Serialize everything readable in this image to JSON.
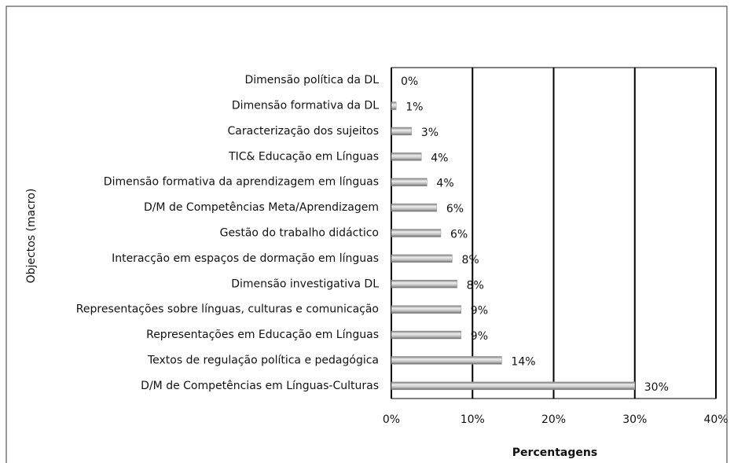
{
  "chart_data": {
    "type": "barh",
    "ylabel": "Objectos (macro)",
    "xlabel": "Percentagens",
    "categories": [
      "Dimensão política da DL",
      "Dimensão formativa da DL",
      "Caracterização dos sujeitos",
      "TIC& Educação em Línguas",
      "Dimensão formativa da aprendizagem em línguas",
      "D/M de Competências Meta/Aprendizagem",
      "Gestão do trabalho didáctico",
      "Interacção em espaços de dormação em línguas",
      "Dimensão investigativa DL",
      "Representações sobre línguas, culturas e comunicação",
      "Representações em Educação em Línguas",
      "Textos de regulação política e pedagógica",
      "D/M de Competências em Línguas-Culturas"
    ],
    "values": [
      0,
      0.6,
      2.5,
      3.7,
      4.4,
      5.6,
      6.1,
      7.5,
      8.1,
      8.6,
      8.6,
      13.6,
      30
    ],
    "value_labels": [
      "0%",
      "1%",
      "3%",
      "4%",
      "4%",
      "6%",
      "6%",
      "8%",
      "8%",
      "9%",
      "9%",
      "14%",
      "30%"
    ],
    "color": "#999999",
    "xlim": [
      0,
      40
    ],
    "xticks": [
      {
        "value": 0,
        "label": "0%"
      },
      {
        "value": 10,
        "label": "10%"
      },
      {
        "value": 20,
        "label": "20%"
      },
      {
        "value": 30,
        "label": "30%"
      },
      {
        "value": 40,
        "label": "40%"
      }
    ],
    "grid": true
  }
}
